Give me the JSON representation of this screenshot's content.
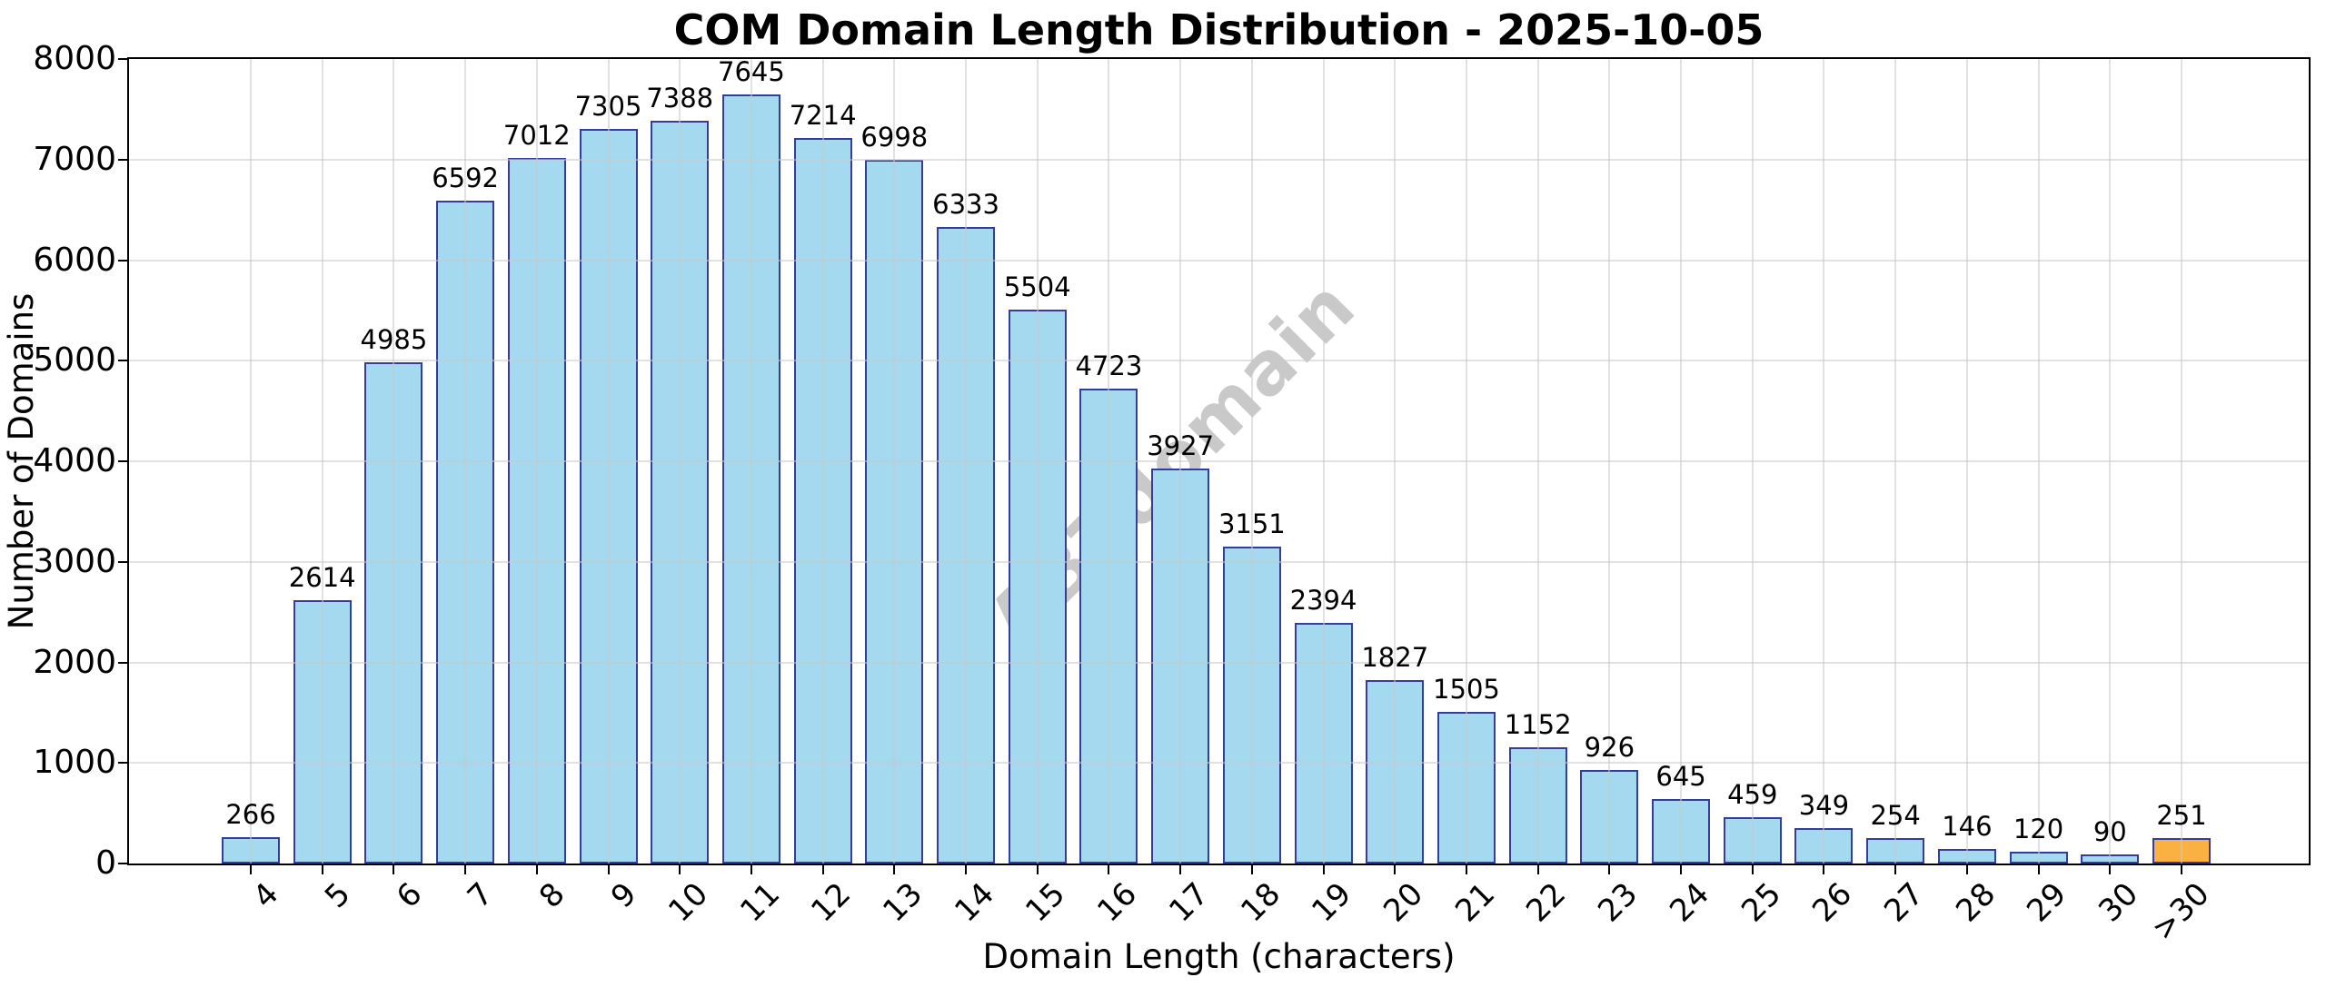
{
  "chart_data": {
    "type": "bar",
    "title": "COM Domain Length Distribution - 2025-10-05",
    "xlabel": "Domain Length (characters)",
    "ylabel": "Number of Domains",
    "categories": [
      "4",
      "5",
      "6",
      "7",
      "8",
      "9",
      "10",
      "11",
      "12",
      "13",
      "14",
      "15",
      "16",
      "17",
      "18",
      "19",
      "20",
      "21",
      "22",
      "23",
      "24",
      "25",
      "26",
      "27",
      "28",
      "29",
      "30",
      ">30"
    ],
    "values": [
      266,
      2614,
      4985,
      6592,
      7012,
      7305,
      7388,
      7645,
      7214,
      6998,
      6333,
      5504,
      4723,
      3927,
      3151,
      2394,
      1827,
      1505,
      1152,
      926,
      645,
      459,
      349,
      254,
      146,
      120,
      90,
      251
    ],
    "ylim": [
      0,
      8000
    ],
    "yticks": [
      0,
      1000,
      2000,
      3000,
      4000,
      5000,
      6000,
      7000,
      8000
    ],
    "grid": true,
    "xtick_rotation": 45,
    "value_labels": true,
    "bar_color": "#A5D9F0",
    "bar_edge_color": "#363D99",
    "highlight_category": ">30",
    "highlight_color": "#FAB142",
    "grid_color": "rgba(200,200,200,0.55)",
    "watermark": "ABTdomain",
    "watermark_color": "#C9C9C9"
  }
}
